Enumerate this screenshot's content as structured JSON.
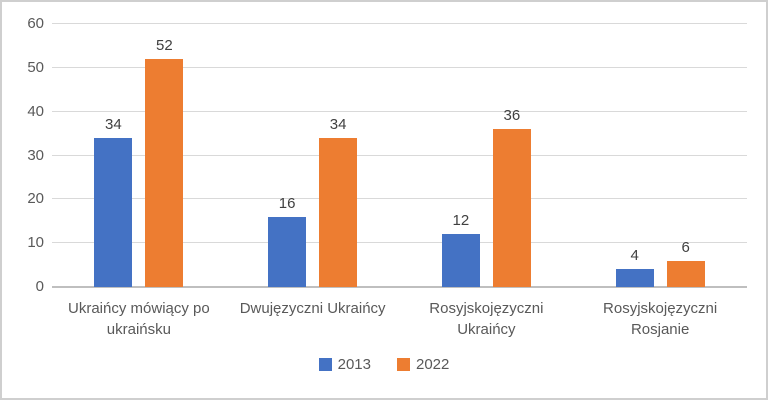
{
  "chart_data": {
    "type": "bar",
    "title": "",
    "xlabel": "",
    "ylabel": "",
    "categories": [
      "Ukraińcy mówiący po ukraińsku",
      "Dwujęzyczni Ukraińcy",
      "Rosyjskojęzyczni Ukraińcy",
      "Rosyjskojęzyczni Rosjanie"
    ],
    "series": [
      {
        "name": "2013",
        "color": "#4472C4",
        "values": [
          34,
          16,
          12,
          4
        ]
      },
      {
        "name": "2022",
        "color": "#ED7D31",
        "values": [
          52,
          34,
          36,
          6
        ]
      }
    ],
    "ylim": [
      0,
      60
    ],
    "yticks": [
      0,
      10,
      20,
      30,
      40,
      50,
      60
    ],
    "grid": true,
    "legend_position": "bottom"
  },
  "colors": {
    "gridline": "#D9D9D9",
    "axis_line": "#BFBFBF",
    "axis_text": "#595959",
    "data_label_text": "#404040",
    "background": "#FFFFFF",
    "border": "#CFCFCF"
  }
}
